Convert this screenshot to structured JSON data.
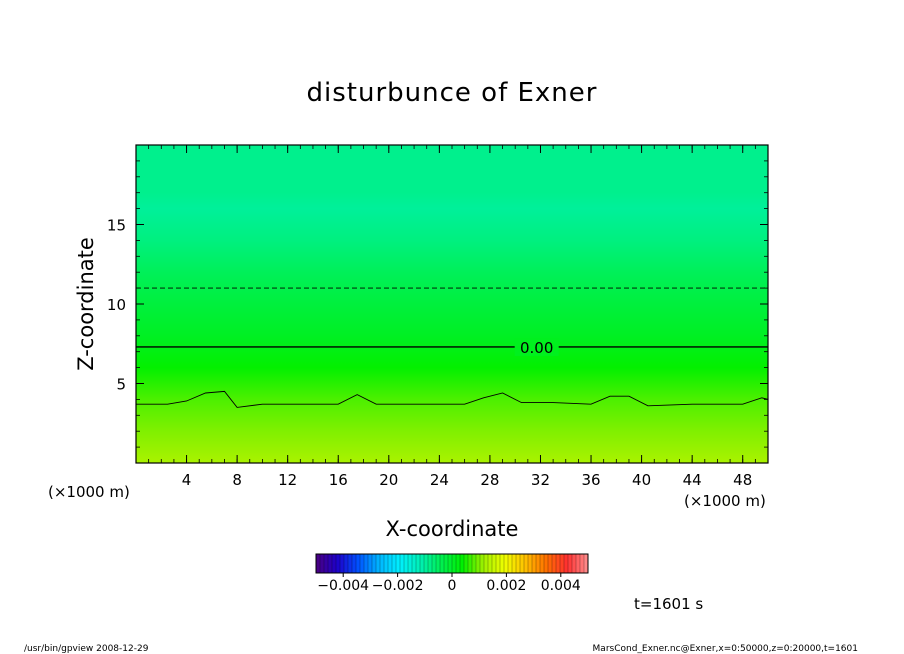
{
  "chart_data": {
    "type": "heatmap",
    "title": "disturbunce of Exner",
    "xlabel": "X-coordinate",
    "ylabel": "Z-coordinate",
    "x_unit": "(×1000 m)",
    "y_unit": "(×1000 m)",
    "xlim": [
      0,
      50
    ],
    "ylim": [
      0,
      20
    ],
    "x_ticks": [
      4,
      8,
      12,
      16,
      20,
      24,
      28,
      32,
      36,
      40,
      44,
      48
    ],
    "y_ticks": [
      5,
      10,
      15
    ],
    "field_profile": {
      "z": [
        0,
        2,
        4,
        6,
        8,
        10,
        12,
        14,
        16,
        17,
        18,
        20
      ],
      "value": [
        0.00125,
        0.001,
        0.00075,
        0.0004,
        5e-05,
        -0.0002,
        -0.00045,
        -0.00075,
        -0.00095,
        -0.00085,
        -0.00085,
        -0.00085
      ]
    },
    "contours": [
      {
        "level_label": "0.00",
        "style": "solid",
        "z": 7.3,
        "label_x": 31.7
      },
      {
        "level_label": "",
        "style": "dashed",
        "z": 11.0
      },
      {
        "level_label": "",
        "style": "thin",
        "points": [
          [
            0,
            3.7
          ],
          [
            2.5,
            3.7
          ],
          [
            4,
            3.9
          ],
          [
            5.5,
            4.4
          ],
          [
            7,
            4.5
          ],
          [
            8,
            3.5
          ],
          [
            10,
            3.7
          ],
          [
            14,
            3.7
          ],
          [
            16,
            3.7
          ],
          [
            17.5,
            4.3
          ],
          [
            19,
            3.7
          ],
          [
            22,
            3.7
          ],
          [
            26,
            3.7
          ],
          [
            27.5,
            4.1
          ],
          [
            29,
            4.4
          ],
          [
            30.5,
            3.8
          ],
          [
            33,
            3.8
          ],
          [
            36,
            3.7
          ],
          [
            37.5,
            4.2
          ],
          [
            39,
            4.2
          ],
          [
            40.5,
            3.6
          ],
          [
            44,
            3.7
          ],
          [
            48,
            3.7
          ],
          [
            49.5,
            4.1
          ],
          [
            50,
            4.0
          ]
        ]
      }
    ],
    "colorbar": {
      "range": [
        -0.005,
        0.005
      ],
      "tick_values": [
        -0.004,
        -0.002,
        0,
        0.002,
        0.004
      ],
      "tick_labels": [
        "−0.004",
        "−0.002",
        "0",
        "0.002",
        "0.004"
      ]
    },
    "time_label": "t=1601 s",
    "footer_left": "/usr/bin/gpview  2008-12-29",
    "footer_right": "MarsCond_Exner.nc@Exner,x=0:50000,z=0:20000,t=1601"
  },
  "palette": {
    "colormap": [
      "#4b0080",
      "#1e00c8",
      "#0050ff",
      "#00b4ff",
      "#00f0ff",
      "#00f0b4",
      "#00f050",
      "#00f000",
      "#a0f000",
      "#f0ff00",
      "#ffc000",
      "#ff7000",
      "#ff3030",
      "#ff9090"
    ]
  }
}
